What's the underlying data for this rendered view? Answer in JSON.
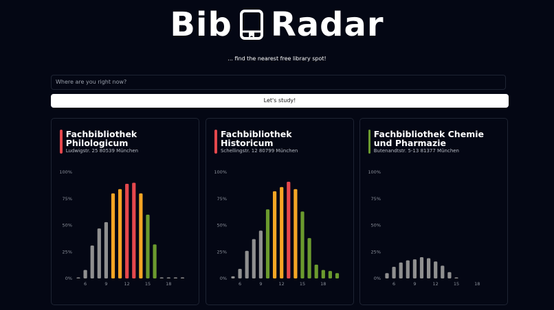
{
  "header": {
    "logo_left": "Bib",
    "logo_right": "Radar",
    "subtitle": "... find the nearest free library spot!"
  },
  "search": {
    "placeholder": "Where are you right now?",
    "button": "Let's study!"
  },
  "chart_data": [
    {
      "type": "bar",
      "title": "Fachbibliothek Philologicum",
      "subtitle": "Ludwigstr. 25 80539 München",
      "color": "#e5484d",
      "categories": [
        null,
        6,
        null,
        null,
        9,
        null,
        null,
        12,
        null,
        null,
        15,
        null,
        null,
        18,
        null,
        null
      ],
      "values": [
        1,
        8,
        31,
        47,
        53,
        80,
        84,
        89,
        90,
        80,
        60,
        32,
        1,
        1,
        1,
        1
      ],
      "colors": [
        "#8f8f8f",
        "#8f8f8f",
        "#8f8f8f",
        "#8f8f8f",
        "#8f8f8f",
        "#f5a524",
        "#f5a524",
        "#e5484d",
        "#e5484d",
        "#f5a524",
        "#6b9a2e",
        "#6b9a2e",
        "#8f8f8f",
        "#8f8f8f",
        "#8f8f8f",
        "#8f8f8f"
      ],
      "ylim": [
        0,
        100
      ],
      "yticks": [
        {
          "value": 0,
          "label": "0%"
        },
        {
          "value": 25,
          "label": "25%"
        },
        {
          "value": 50,
          "label": "50%"
        },
        {
          "value": 75,
          "label": "75%"
        },
        {
          "value": 100,
          "label": "100%"
        }
      ]
    },
    {
      "type": "bar",
      "title": "Fachbibliothek Historicum",
      "subtitle": "Schellingstr. 12 80799 München",
      "color": "#e5484d",
      "categories": [
        null,
        6,
        null,
        null,
        9,
        null,
        null,
        12,
        null,
        null,
        15,
        null,
        null,
        18,
        null,
        null
      ],
      "values": [
        2,
        9,
        26,
        37,
        45,
        65,
        82,
        86,
        91,
        84,
        63,
        38,
        13,
        8,
        7,
        5
      ],
      "colors": [
        "#8f8f8f",
        "#8f8f8f",
        "#8f8f8f",
        "#8f8f8f",
        "#8f8f8f",
        "#6b9a2e",
        "#f5a524",
        "#f5a524",
        "#e5484d",
        "#f5a524",
        "#6b9a2e",
        "#6b9a2e",
        "#6b9a2e",
        "#6b9a2e",
        "#6b9a2e",
        "#6b9a2e"
      ],
      "ylim": [
        0,
        100
      ],
      "yticks": [
        {
          "value": 0,
          "label": "0%"
        },
        {
          "value": 25,
          "label": "25%"
        },
        {
          "value": 50,
          "label": "50%"
        },
        {
          "value": 75,
          "label": "75%"
        },
        {
          "value": 100,
          "label": "100%"
        }
      ]
    },
    {
      "type": "bar",
      "title": "Fachbibliothek Chemie und Pharmazie",
      "subtitle": "Butenandtstr. 5-13 81377 München",
      "color": "#6b9a2e",
      "categories": [
        null,
        6,
        null,
        null,
        9,
        null,
        null,
        12,
        null,
        null,
        15,
        null,
        null,
        18
      ],
      "values": [
        5,
        11,
        15,
        17,
        18,
        20,
        19,
        16,
        12,
        6,
        1,
        null,
        null,
        null
      ],
      "colors": [
        "#8f8f8f",
        "#8f8f8f",
        "#8f8f8f",
        "#8f8f8f",
        "#8f8f8f",
        "#8f8f8f",
        "#8f8f8f",
        "#8f8f8f",
        "#8f8f8f",
        "#8f8f8f",
        "#8f8f8f",
        "#8f8f8f",
        "#8f8f8f",
        "#8f8f8f"
      ],
      "ylim": [
        0,
        100
      ],
      "yticks": [
        {
          "value": 0,
          "label": "0%"
        },
        {
          "value": 25,
          "label": "25%"
        },
        {
          "value": 50,
          "label": "50%"
        },
        {
          "value": 75,
          "label": "75%"
        },
        {
          "value": 100,
          "label": "100%"
        }
      ]
    }
  ]
}
